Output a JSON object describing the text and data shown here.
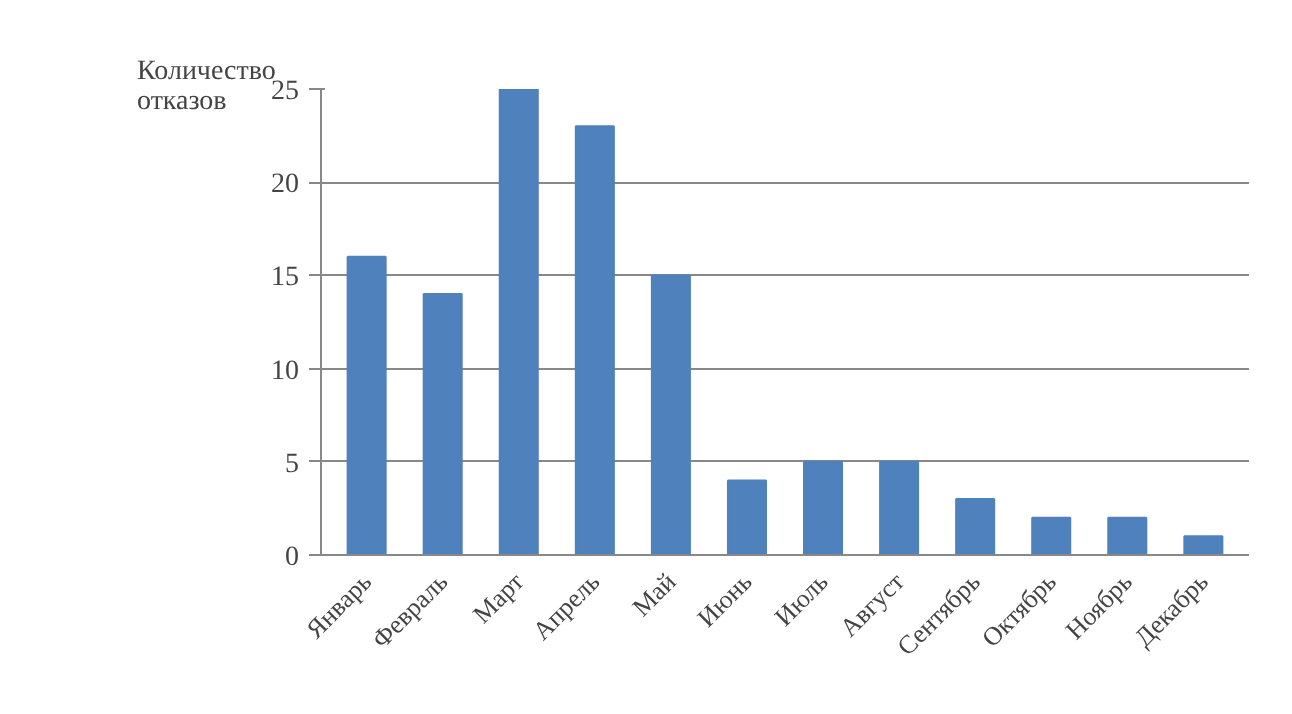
{
  "chart_data": {
    "type": "bar",
    "ylabel": "Количество отказов",
    "categories": [
      "Январь",
      "Февраль",
      "Март",
      "Апрель",
      "Май",
      "Июнь",
      "Июль",
      "Август",
      "Сентябрь",
      "Октябрь",
      "Ноябрь",
      "Декабрь"
    ],
    "values": [
      16,
      14,
      25,
      23,
      15,
      4,
      5,
      5,
      3,
      2,
      2,
      1
    ],
    "color": "#4f81bd",
    "ylim": [
      0,
      25
    ],
    "yticks": [
      0,
      5,
      10,
      15,
      20,
      25
    ],
    "grid": "y"
  }
}
